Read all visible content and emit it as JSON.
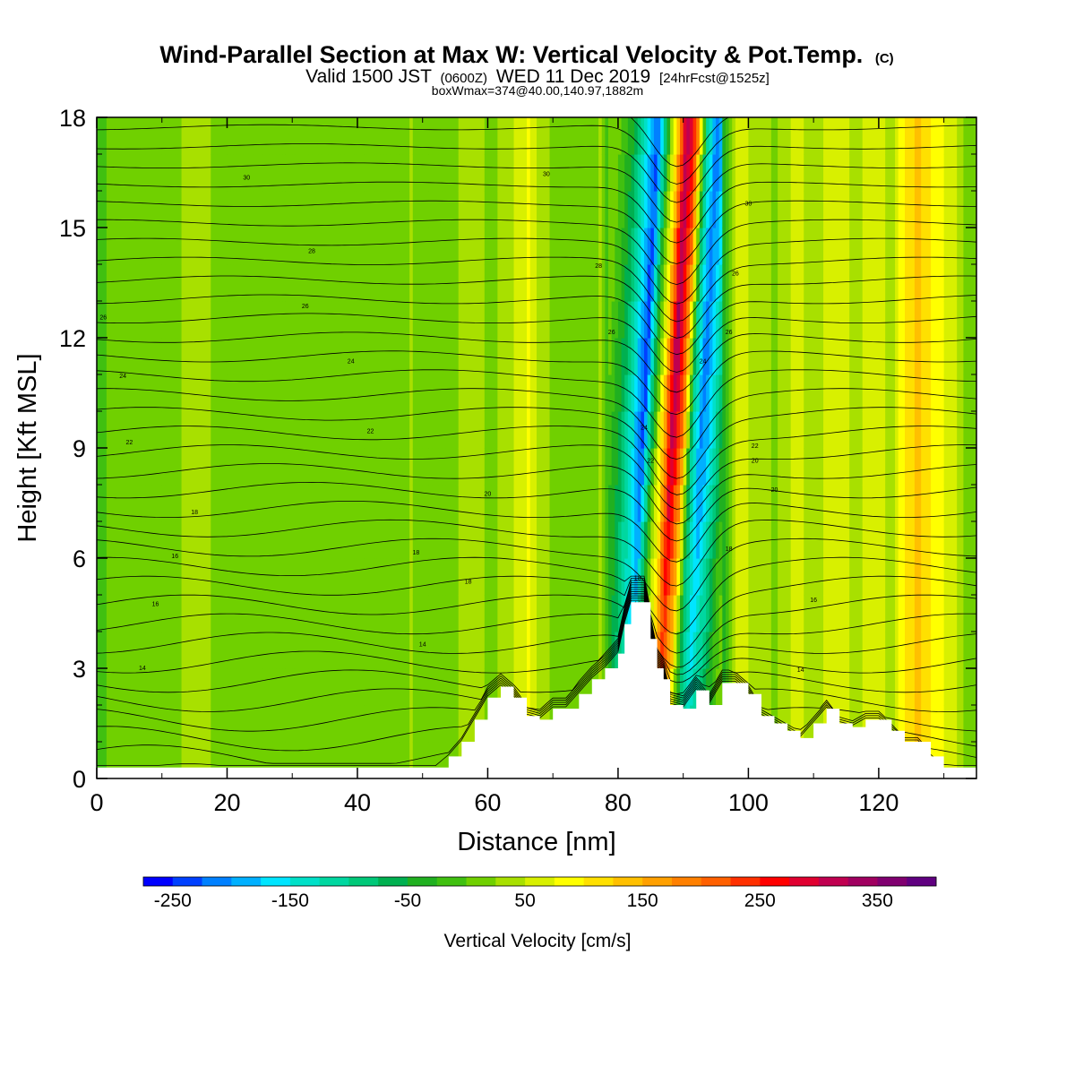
{
  "header": {
    "title": "Wind-Parallel Section at Max W: Vertical Velocity & Pot.Temp.",
    "copyright": "(C)",
    "valid_prefix": "Valid 1500 JST",
    "valid_zulu": "(0600Z)",
    "valid_date": "WED 11 Dec 2019",
    "forecast": "[24hrFcst@1525z]",
    "box_info": "boxWmax=374@40.00,140.97,1882m"
  },
  "chart_data": {
    "type": "heatmap",
    "title": "Wind-Parallel Section at Max W: Vertical Velocity & Pot.Temp.",
    "xlabel": "Distance [nm]",
    "ylabel": "Height [Kft MSL]",
    "xlim": [
      0,
      135
    ],
    "ylim": [
      0,
      18
    ],
    "x_ticks": [
      "0",
      "20",
      "40",
      "60",
      "80",
      "100",
      "120"
    ],
    "x_tick_values": [
      0,
      20,
      40,
      60,
      80,
      100,
      120
    ],
    "y_ticks": [
      "0",
      "3",
      "6",
      "9",
      "12",
      "15",
      "18"
    ],
    "y_tick_values": [
      0,
      3,
      6,
      9,
      12,
      15,
      18
    ],
    "colorbar": {
      "label": "Vertical Velocity [cm/s]",
      "min": -275,
      "max": 400,
      "step": 25,
      "tick_labels": [
        "-250",
        "-150",
        "-50",
        "50",
        "150",
        "250",
        "350"
      ],
      "tick_values": [
        -250,
        -150,
        -50,
        50,
        150,
        250,
        350
      ],
      "colors": [
        "#0000ff",
        "#0040ff",
        "#0080ff",
        "#00b0ff",
        "#00e5ff",
        "#00e0c8",
        "#00d7a0",
        "#00c878",
        "#00b050",
        "#20b020",
        "#40c010",
        "#70d000",
        "#a8e000",
        "#d8f000",
        "#ffff00",
        "#ffe000",
        "#ffc000",
        "#ffa000",
        "#ff8000",
        "#ff6000",
        "#ff3000",
        "#ff0000",
        "#e00030",
        "#c00050",
        "#a00060",
        "#800070",
        "#600080"
      ]
    },
    "terrain": {
      "distance_nm": [
        0,
        52,
        54,
        56,
        58,
        60,
        62,
        64,
        66,
        68,
        70,
        72,
        74,
        76,
        78,
        80,
        81,
        82,
        84,
        85,
        86,
        87,
        88,
        90,
        92,
        94,
        96,
        98,
        100,
        102,
        104,
        106,
        108,
        110,
        112,
        114,
        116,
        118,
        120,
        122,
        124,
        126,
        128,
        130,
        132,
        135
      ],
      "height_kft": [
        0.3,
        0.3,
        0.6,
        1.0,
        1.6,
        2.2,
        2.5,
        2.2,
        1.7,
        1.6,
        1.9,
        1.9,
        2.3,
        2.7,
        3.0,
        3.4,
        4.2,
        4.8,
        4.8,
        3.8,
        3.0,
        2.7,
        2.0,
        1.9,
        2.4,
        2.0,
        2.6,
        2.6,
        2.3,
        1.7,
        1.5,
        1.3,
        1.1,
        1.5,
        1.9,
        1.5,
        1.4,
        1.6,
        1.6,
        1.3,
        1.0,
        1.0,
        0.6,
        0.3,
        0.3,
        0.3
      ]
    },
    "w_columns": {
      "distance_nm": [
        0,
        3,
        7,
        9,
        12,
        15,
        18,
        22,
        26,
        30,
        35,
        40,
        44,
        48,
        52,
        57,
        61,
        63,
        66,
        68,
        71,
        74,
        77,
        80,
        82,
        83.5,
        85,
        86.5,
        88,
        89.5,
        91,
        92.5,
        94,
        96,
        98,
        101,
        104,
        107,
        110,
        113,
        116,
        119,
        122,
        124,
        126,
        128,
        131,
        133,
        135
      ],
      "w_cm_s": [
        -10,
        10,
        10,
        20,
        15,
        45,
        20,
        10,
        10,
        15,
        10,
        10,
        15,
        25,
        15,
        30,
        20,
        40,
        75,
        30,
        15,
        10,
        25,
        -60,
        -160,
        -240,
        -40,
        120,
        330,
        200,
        -100,
        -220,
        -150,
        -30,
        60,
        40,
        20,
        60,
        30,
        70,
        40,
        60,
        40,
        110,
        130,
        90,
        60,
        20,
        10
      ]
    },
    "theta_contours": {
      "interval": 1,
      "labels": [
        "14",
        "16",
        "18",
        "20",
        "22",
        "24",
        "26",
        "28",
        "30"
      ]
    }
  }
}
